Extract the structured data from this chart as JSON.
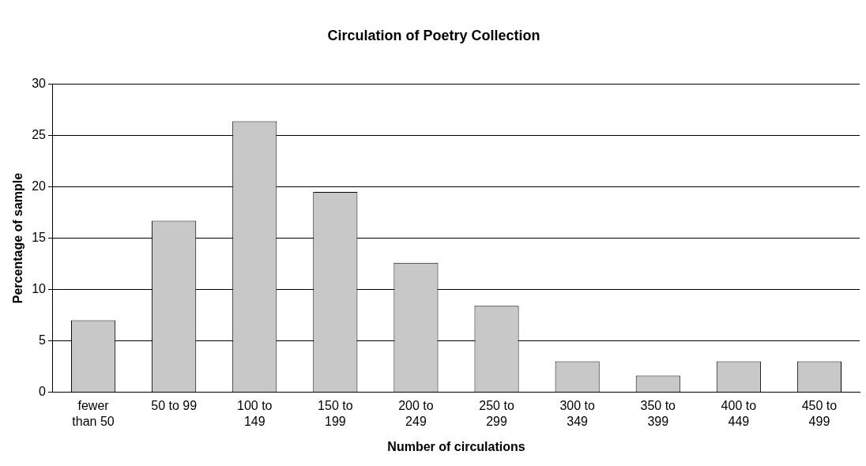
{
  "chart_data": {
    "type": "bar",
    "title": "Circulation of Poetry Collection",
    "xlabel": "Number of circulations",
    "ylabel": "Percentage of sample",
    "categories": [
      "fewer than 50",
      "50 to 99",
      "100 to 149",
      "150 to 199",
      "200 to 249",
      "250 to 299",
      "300 to 349",
      "350 to 399",
      "400 to 449",
      "450 to 499"
    ],
    "values": [
      7,
      16.7,
      26.4,
      19.5,
      12.6,
      8.4,
      3,
      1.6,
      3,
      3
    ],
    "color": "#c8c8c8",
    "ylim": [
      0,
      30
    ],
    "yticks": [
      0,
      5,
      10,
      15,
      20,
      25,
      30
    ],
    "grid": "y",
    "legend": false
  }
}
